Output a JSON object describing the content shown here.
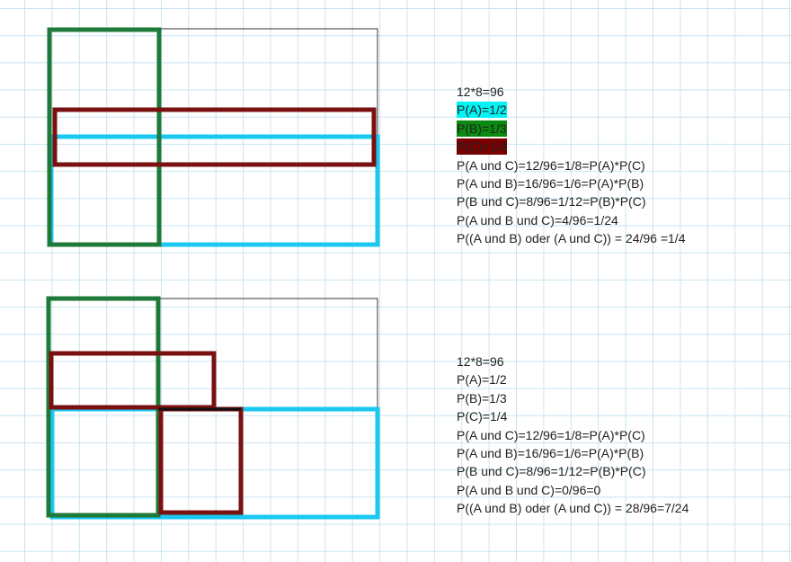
{
  "panels": [
    {
      "lines": [
        "12*8=96",
        "P(A)=1/2",
        "P(B)=1/3",
        "P(C)=1/4",
        "P(A und C)=12/96=1/8=P(A)*P(C)",
        "P(A und B)=16/96=1/6=P(A)*P(B)",
        "P(B und C)=8/96=1/12=P(B)*P(C)",
        "P(A und B und C)=4/96=1/24",
        "P((A und B) oder (A und C)) = 24/96 =1/4"
      ]
    },
    {
      "lines": [
        "12*8=96",
        "P(A)=1/2",
        "P(B)=1/3",
        "P(C)=1/4",
        "P(A und C)=12/96=1/8=P(A)*P(C)",
        "P(A und B)=16/96=1/6=P(A)*P(B)",
        "P(B und C)=8/96=1/12=P(B)*P(C)",
        "P(A und B und C)=0/96=0",
        "P((A und B) oder (A und C)) = 28/96=7/24"
      ]
    }
  ]
}
